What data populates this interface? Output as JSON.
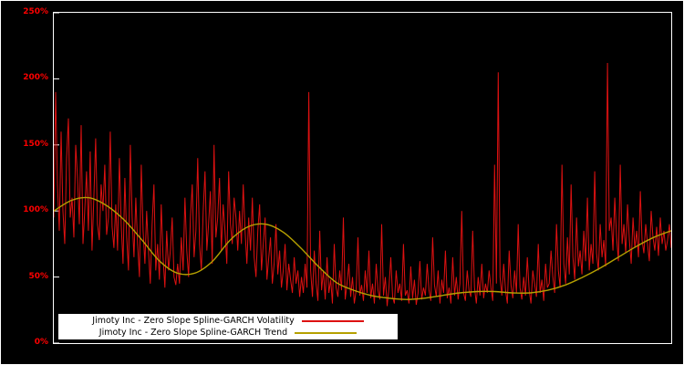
{
  "figure": {
    "background": "#000000",
    "axis_color": "#ffffff",
    "tick_label_color": "#ff0000"
  },
  "chart_data": {
    "type": "line",
    "title": "",
    "xlabel": "",
    "ylabel": "",
    "grid": false,
    "legend_position": "bottom-left",
    "ylim": [
      0,
      250
    ],
    "y_ticks": [
      "0%",
      "50%",
      "100%",
      "150%",
      "200%",
      "250%"
    ],
    "y_tick_values": [
      0,
      50,
      100,
      150,
      200,
      250
    ],
    "x_ticks": [],
    "series": [
      {
        "name": "Jimoty Inc - Zero Slope Spline-GARCH Volatility",
        "color": "#dd1111",
        "style": "raw",
        "unit": "%",
        "values": [
          95,
          190,
          120,
          85,
          160,
          100,
          75,
          140,
          170,
          95,
          110,
          80,
          150,
          125,
          90,
          165,
          75,
          100,
          130,
          85,
          145,
          70,
          110,
          155,
          90,
          78,
          120,
          100,
          135,
          82,
          95,
          160,
          88,
          72,
          105,
          70,
          140,
          90,
          60,
          125,
          80,
          55,
          150,
          95,
          65,
          110,
          75,
          50,
          135,
          85,
          60,
          100,
          70,
          45,
          90,
          120,
          55,
          75,
          48,
          105,
          65,
          42,
          85,
          55,
          70,
          95,
          50,
          44,
          60,
          45,
          80,
          55,
          110,
          70,
          50,
          95,
          120,
          65,
          85,
          140,
          75,
          55,
          100,
          130,
          70,
          90,
          115,
          60,
          150,
          80,
          95,
          125,
          70,
          105,
          85,
          60,
          130,
          90,
          75,
          110,
          95,
          70,
          100,
          75,
          120,
          85,
          60,
          95,
          70,
          110,
          65,
          50,
          85,
          105,
          55,
          75,
          95,
          48,
          65,
          80,
          45,
          60,
          90,
          52,
          70,
          42,
          55,
          75,
          40,
          60,
          48,
          38,
          65,
          45,
          55,
          35,
          50,
          38,
          60,
          42,
          190,
          55,
          35,
          70,
          45,
          32,
          85,
          40,
          55,
          33,
          65,
          38,
          48,
          30,
          75,
          42,
          35,
          55,
          40,
          95,
          33,
          45,
          60,
          35,
          50,
          30,
          40,
          80,
          36,
          44,
          32,
          55,
          38,
          70,
          34,
          45,
          30,
          60,
          40,
          33,
          90,
          36,
          50,
          28,
          42,
          65,
          35,
          30,
          55,
          38,
          45,
          32,
          75,
          36,
          40,
          30,
          58,
          34,
          48,
          29,
          38,
          62,
          33,
          42,
          36,
          60,
          40,
          32,
          80,
          44,
          35,
          55,
          30,
          48,
          38,
          70,
          34,
          42,
          30,
          65,
          36,
          50,
          33,
          45,
          100,
          38,
          32,
          55,
          40,
          35,
          85,
          42,
          30,
          50,
          36,
          60,
          34,
          45,
          38,
          55,
          42,
          32,
          135,
          45,
          205,
          50,
          36,
          60,
          40,
          30,
          70,
          44,
          34,
          55,
          38,
          90,
          42,
          33,
          50,
          36,
          65,
          40,
          30,
          55,
          45,
          35,
          75,
          38,
          48,
          32,
          60,
          42,
          45,
          70,
          50,
          38,
          90,
          55,
          42,
          135,
          60,
          45,
          80,
          52,
          120,
          65,
          48,
          95,
          58,
          70,
          52,
          85,
          62,
          110,
          55,
          75,
          60,
          130,
          68,
          55,
          90,
          65,
          78,
          58,
          212,
          85,
          95,
          70,
          110,
          80,
          62,
          135,
          75,
          90,
          68,
          105,
          78,
          60,
          95,
          72,
          85,
          65,
          115,
          78,
          68,
          90,
          75,
          62,
          100,
          80,
          70,
          88,
          66,
          95,
          75,
          85,
          70,
          78,
          90,
          72
        ]
      },
      {
        "name": "Jimoty Inc - Zero Slope Spline-GARCH Trend",
        "color": "#b5a000",
        "style": "smooth",
        "unit": "%",
        "values": [
          100,
          108,
          110,
          104,
          93,
          78,
          62,
          53,
          53,
          62,
          78,
          88,
          90,
          84,
          72,
          58,
          46,
          40,
          36,
          34,
          33,
          34,
          36,
          38,
          39,
          39,
          38,
          38,
          40,
          44,
          50,
          57,
          65,
          73,
          80,
          85
        ]
      }
    ]
  }
}
